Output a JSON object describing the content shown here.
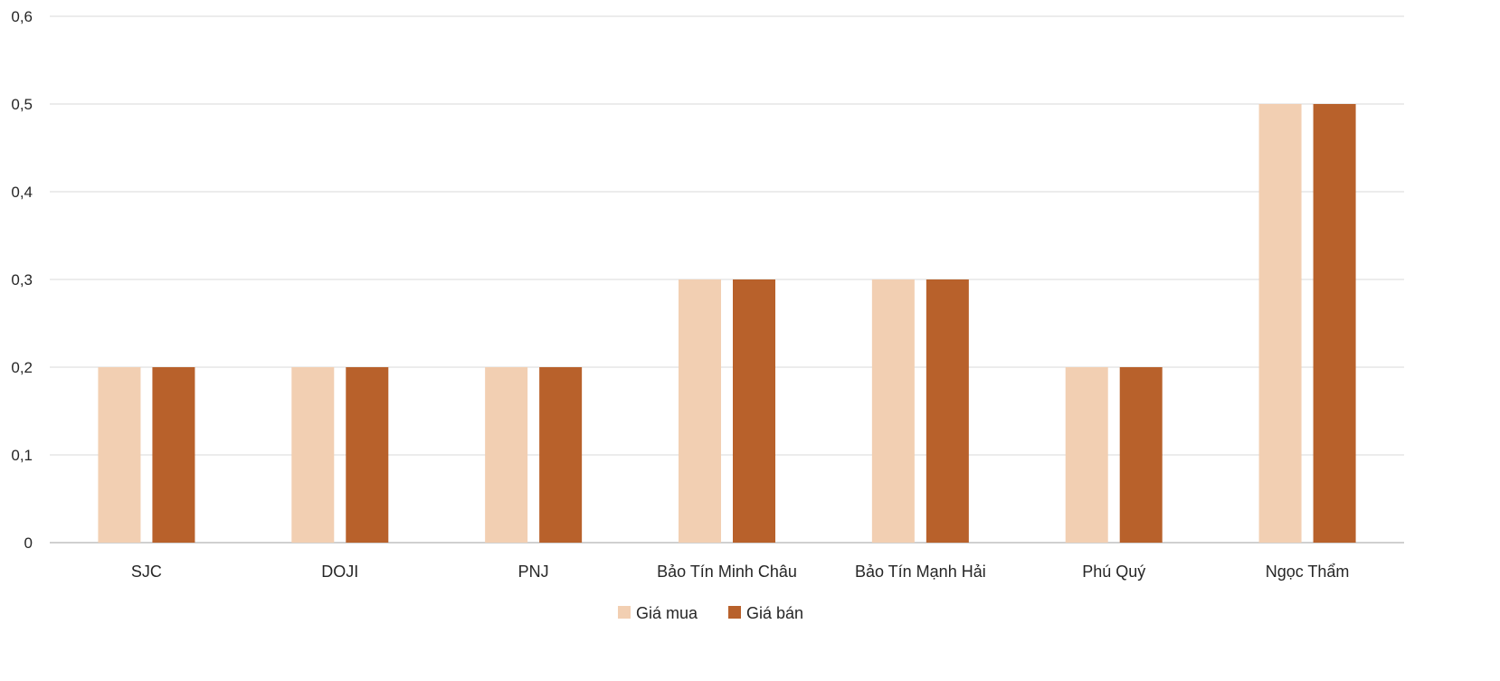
{
  "chart_data": {
    "type": "bar",
    "title": "",
    "xlabel": "",
    "ylabel": "",
    "ylim": [
      0,
      0.6
    ],
    "yticks": [
      "0",
      "0,1",
      "0,2",
      "0,3",
      "0,4",
      "0,5",
      "0,6"
    ],
    "grid": true,
    "legend_position": "bottom",
    "categories": [
      "SJC",
      "DOJI",
      "PNJ",
      "Bảo Tín Minh Châu",
      "Bảo Tín Mạnh Hải",
      "Phú Quý",
      "Ngọc Thẩm"
    ],
    "series": [
      {
        "name": "Giá mua",
        "color": "#F2CFB2",
        "values": [
          0.2,
          0.2,
          0.2,
          0.3,
          0.3,
          0.2,
          0.5
        ]
      },
      {
        "name": "Giá bán",
        "color": "#B8612B",
        "values": [
          0.2,
          0.2,
          0.2,
          0.3,
          0.3,
          0.2,
          0.5
        ]
      }
    ]
  }
}
